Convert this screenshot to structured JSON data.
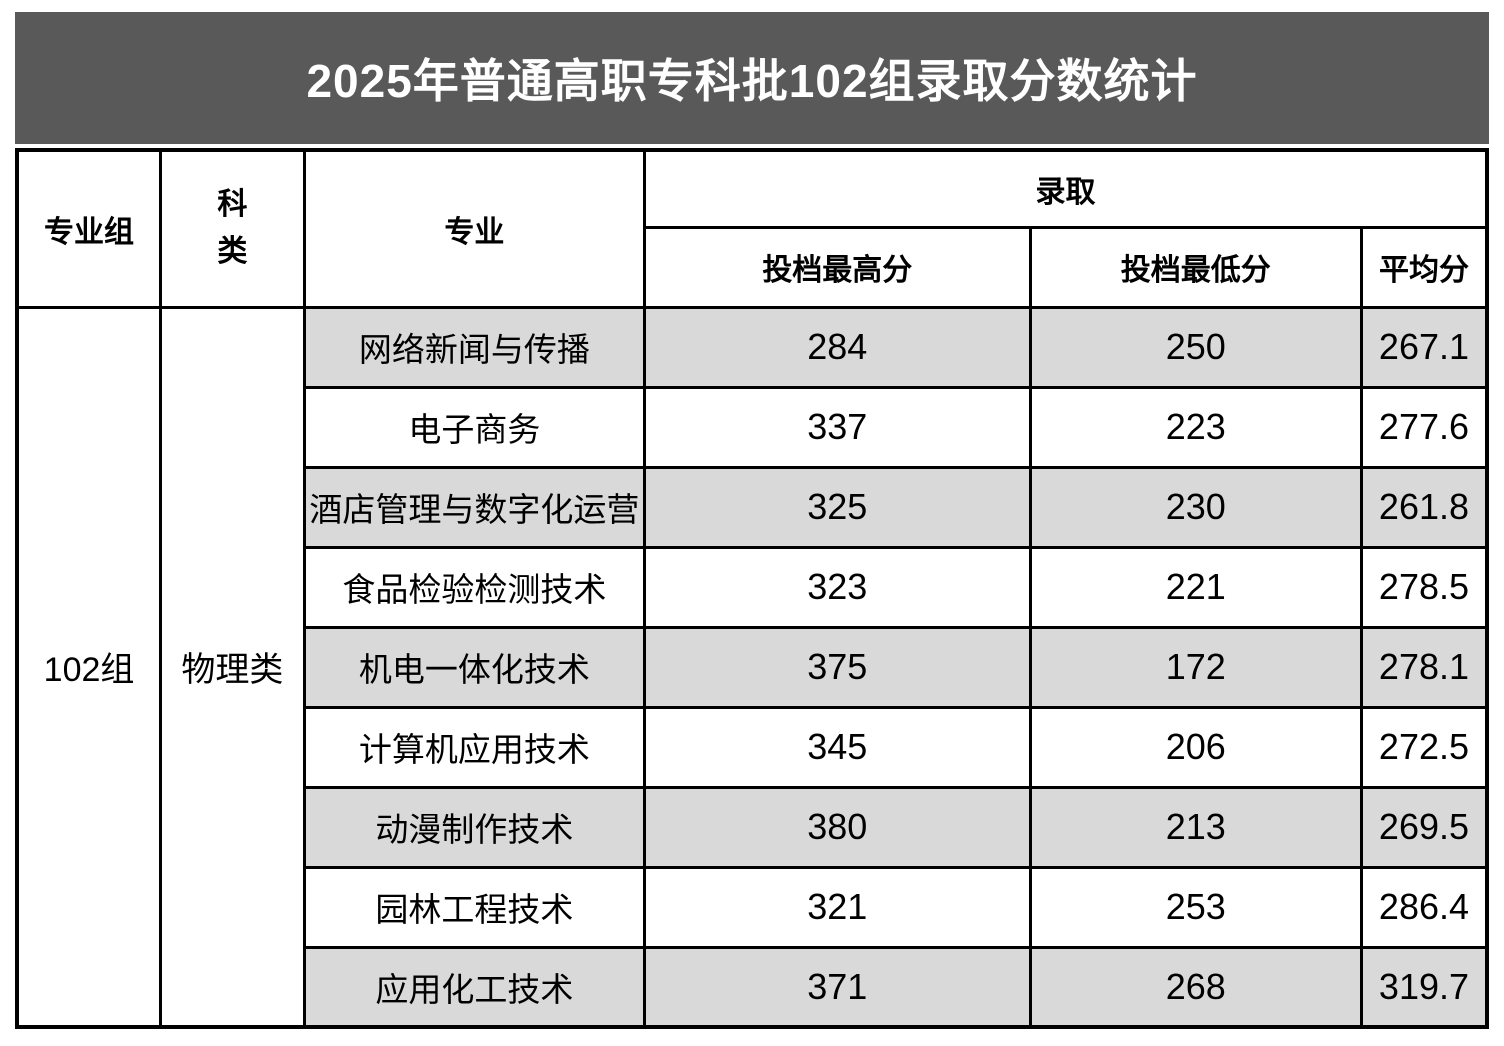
{
  "title": "2025年普通高职专科批102组录取分数统计",
  "colors": {
    "banner_bg": "#595959",
    "banner_text": "#ffffff",
    "row_alt_bg": "#d9d9d9",
    "border": "#000000"
  },
  "table": {
    "headers": {
      "group": "专业组",
      "category": "科类",
      "major": "专业",
      "admission": "录取",
      "max_score": "投档最高分",
      "min_score": "投档最低分",
      "avg_score": "平均分"
    },
    "group_value": "102组",
    "category_value": "物理类",
    "rows": [
      {
        "major": "网络新闻与传播",
        "max": "284",
        "min": "250",
        "avg": "267.1"
      },
      {
        "major": "电子商务",
        "max": "337",
        "min": "223",
        "avg": "277.6"
      },
      {
        "major": "酒店管理与数字化运营",
        "max": "325",
        "min": "230",
        "avg": "261.8"
      },
      {
        "major": "食品检验检测技术",
        "max": "323",
        "min": "221",
        "avg": "278.5"
      },
      {
        "major": "机电一体化技术",
        "max": "375",
        "min": "172",
        "avg": "278.1"
      },
      {
        "major": "计算机应用技术",
        "max": "345",
        "min": "206",
        "avg": "272.5"
      },
      {
        "major": "动漫制作技术",
        "max": "380",
        "min": "213",
        "avg": "269.5"
      },
      {
        "major": "园林工程技术",
        "max": "321",
        "min": "253",
        "avg": "286.4"
      },
      {
        "major": "应用化工技术",
        "max": "371",
        "min": "268",
        "avg": "319.7"
      }
    ]
  },
  "chart_data": {
    "type": "table",
    "title": "2025年普通高职专科批102组录取分数统计",
    "columns": [
      "专业组",
      "科类",
      "专业",
      "录取-投档最高分",
      "录取-投档最低分",
      "平均分"
    ],
    "group": "102组",
    "category": "物理类",
    "rows": [
      [
        "网络新闻与传播",
        284,
        250,
        267.1
      ],
      [
        "电子商务",
        337,
        223,
        277.6
      ],
      [
        "酒店管理与数字化运营",
        325,
        230,
        261.8
      ],
      [
        "食品检验检测技术",
        323,
        221,
        278.5
      ],
      [
        "机电一体化技术",
        375,
        172,
        278.1
      ],
      [
        "计算机应用技术",
        345,
        206,
        272.5
      ],
      [
        "动漫制作技术",
        380,
        213,
        269.5
      ],
      [
        "园林工程技术",
        321,
        253,
        286.4
      ],
      [
        "应用化工技术",
        371,
        268,
        319.7
      ]
    ]
  }
}
